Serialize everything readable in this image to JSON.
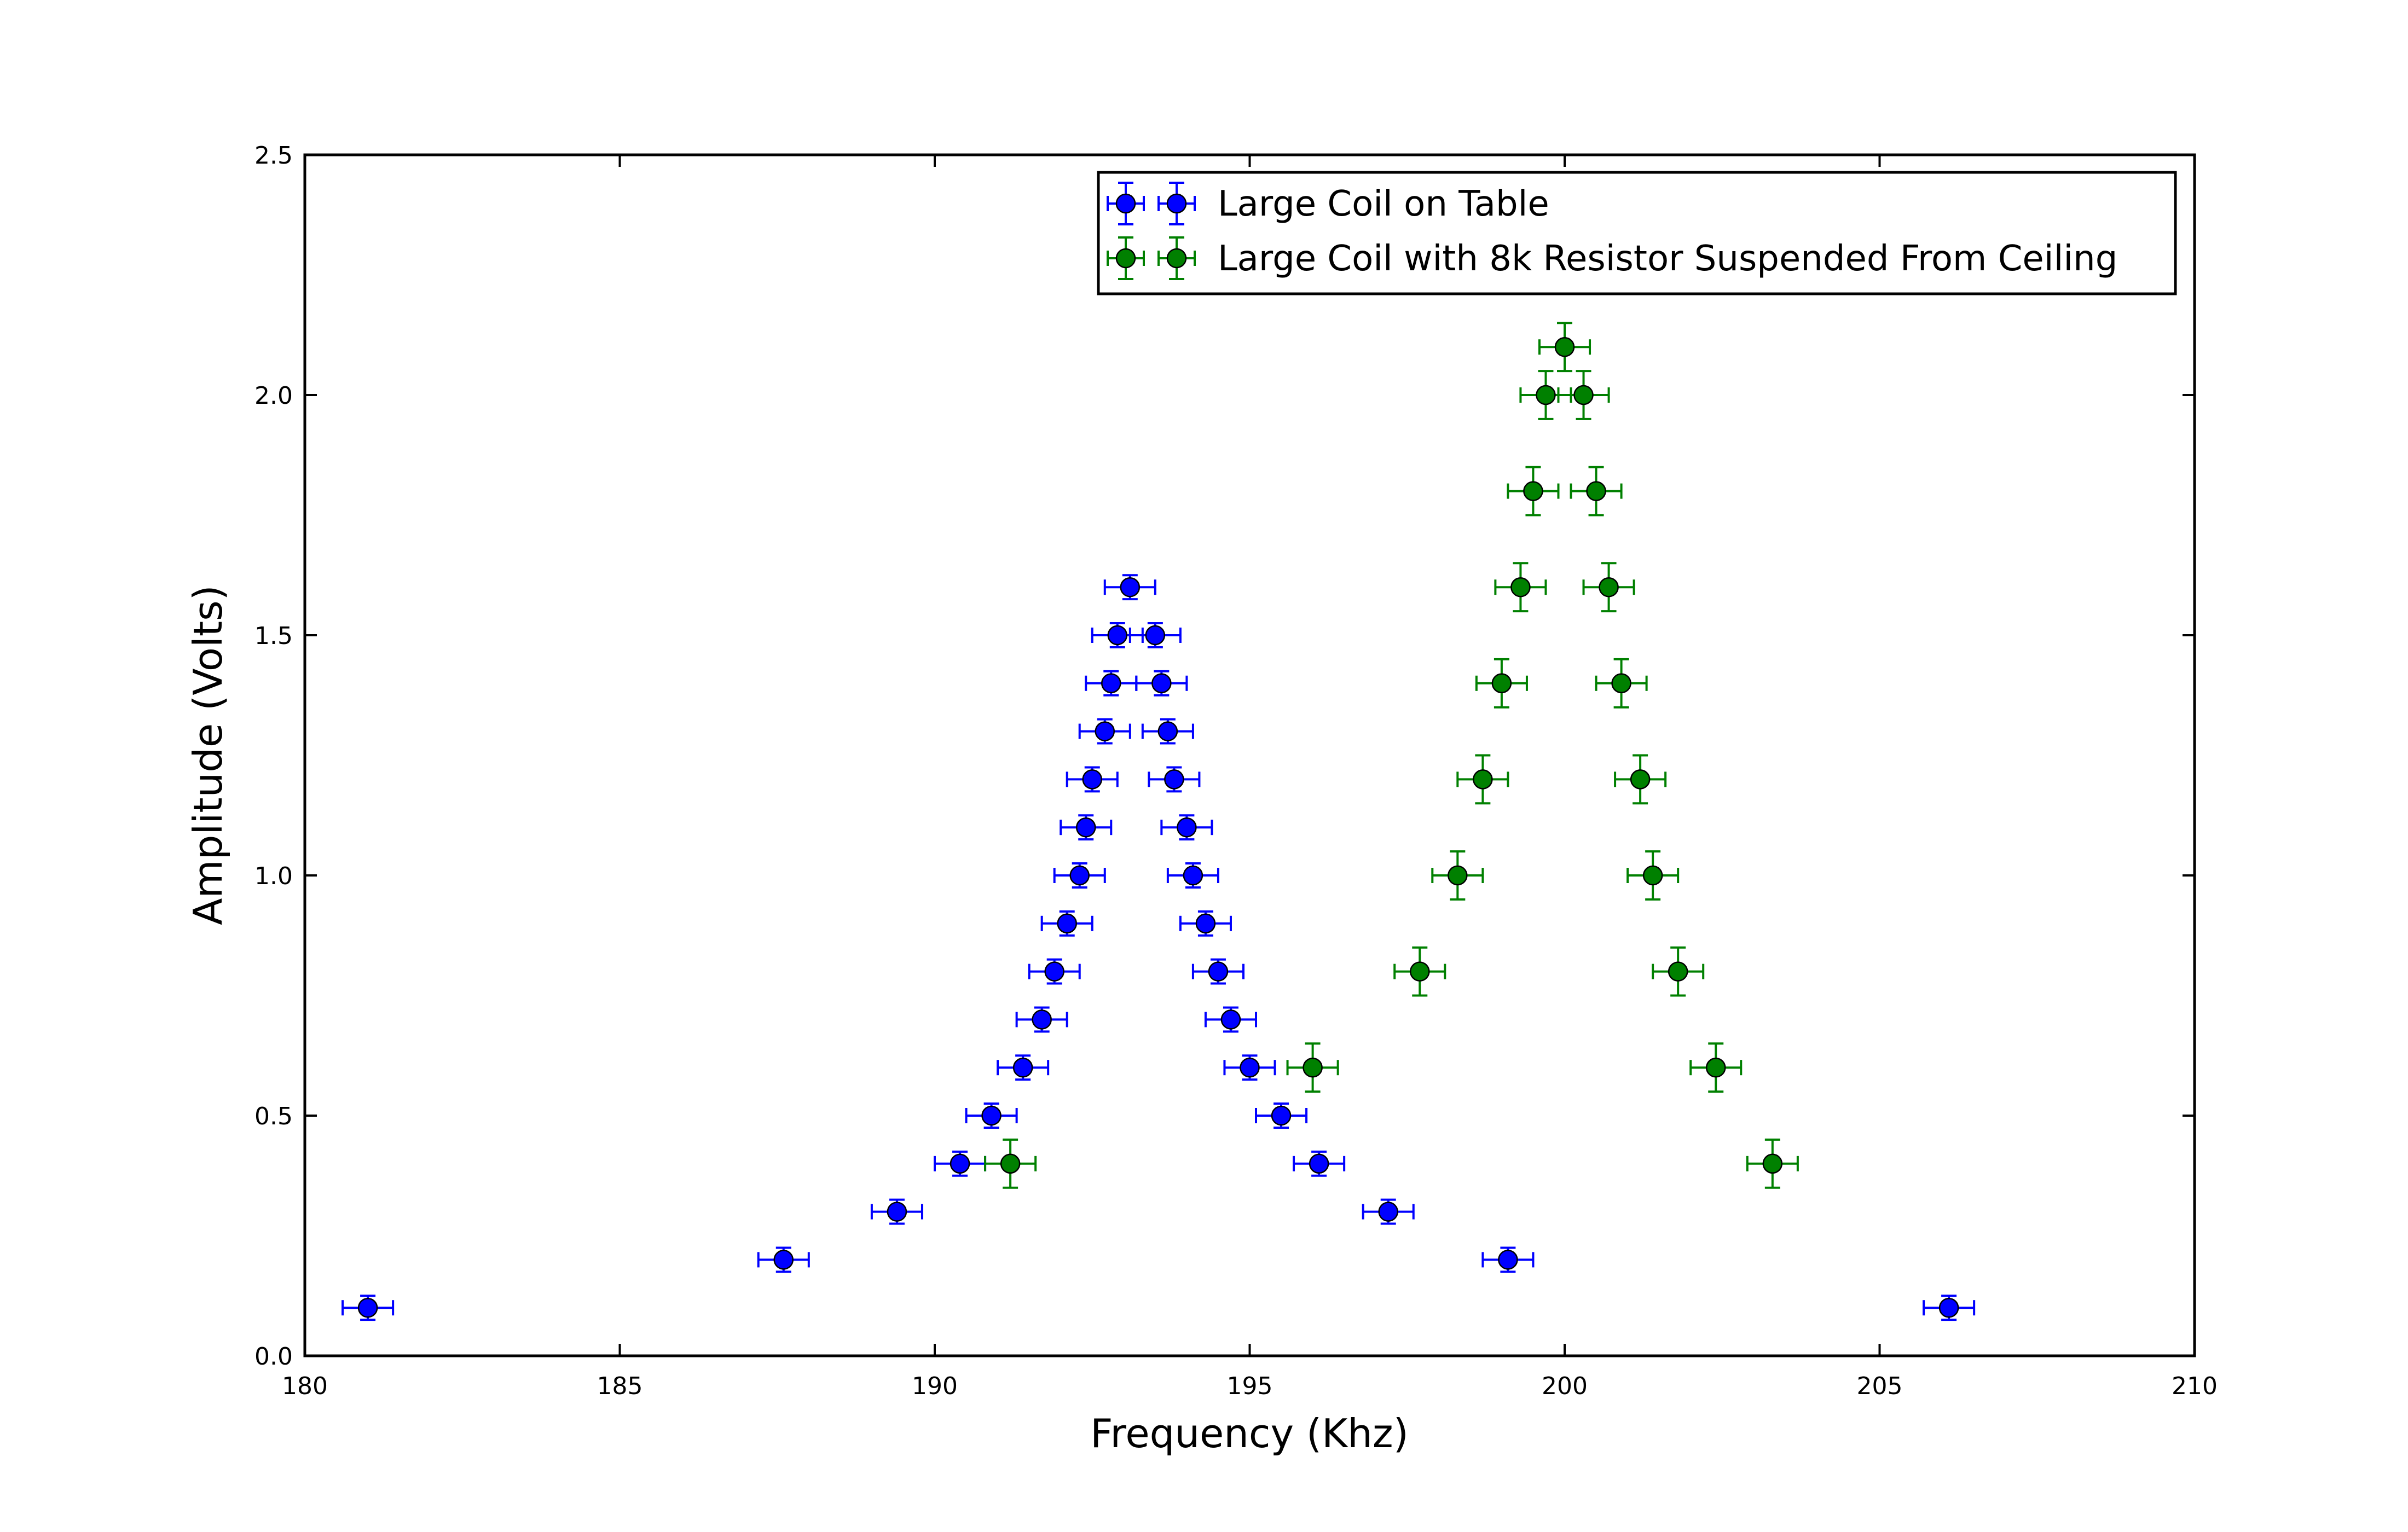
{
  "chart_data": {
    "type": "scatter",
    "title": "",
    "xlabel": "Frequency (Khz)",
    "ylabel": "Amplitude (Volts)",
    "xlim": [
      180,
      210
    ],
    "ylim": [
      0.0,
      2.5
    ],
    "x_ticks": [
      180,
      185,
      190,
      195,
      200,
      205,
      210
    ],
    "x_tick_labels": [
      "180",
      "185",
      "190",
      "195",
      "200",
      "205",
      "210"
    ],
    "y_ticks": [
      0.0,
      0.5,
      1.0,
      1.5,
      2.0,
      2.5
    ],
    "y_tick_labels": [
      "0.0",
      "0.5",
      "1.0",
      "1.5",
      "2.0",
      "2.5"
    ],
    "grid": false,
    "legend_position": "top-right",
    "series": [
      {
        "name": "Large Coil on Table",
        "color": "#0000ff",
        "x_error": 0.4,
        "y_error": 0.025,
        "points": [
          [
            181.0,
            0.1
          ],
          [
            187.6,
            0.2
          ],
          [
            189.4,
            0.3
          ],
          [
            190.4,
            0.4
          ],
          [
            190.9,
            0.5
          ],
          [
            191.4,
            0.6
          ],
          [
            191.7,
            0.7
          ],
          [
            191.9,
            0.8
          ],
          [
            192.1,
            0.9
          ],
          [
            192.3,
            1.0
          ],
          [
            192.4,
            1.1
          ],
          [
            192.5,
            1.2
          ],
          [
            192.7,
            1.3
          ],
          [
            192.8,
            1.4
          ],
          [
            192.9,
            1.5
          ],
          [
            193.1,
            1.6
          ],
          [
            193.5,
            1.5
          ],
          [
            193.6,
            1.4
          ],
          [
            193.7,
            1.3
          ],
          [
            193.8,
            1.2
          ],
          [
            194.0,
            1.1
          ],
          [
            194.1,
            1.0
          ],
          [
            194.3,
            0.9
          ],
          [
            194.5,
            0.8
          ],
          [
            194.7,
            0.7
          ],
          [
            195.0,
            0.6
          ],
          [
            195.5,
            0.5
          ],
          [
            196.1,
            0.4
          ],
          [
            197.2,
            0.3
          ],
          [
            199.1,
            0.2
          ],
          [
            206.1,
            0.1
          ]
        ]
      },
      {
        "name": "Large Coil with 8k Resistor Suspended From Ceiling",
        "color": "#008000",
        "x_error": 0.4,
        "y_error": 0.05,
        "points": [
          [
            191.2,
            0.4
          ],
          [
            196.0,
            0.6
          ],
          [
            197.7,
            0.8
          ],
          [
            198.3,
            1.0
          ],
          [
            198.7,
            1.2
          ],
          [
            199.0,
            1.4
          ],
          [
            199.3,
            1.6
          ],
          [
            199.5,
            1.8
          ],
          [
            199.7,
            2.0
          ],
          [
            200.0,
            2.1
          ],
          [
            200.3,
            2.0
          ],
          [
            200.5,
            1.8
          ],
          [
            200.7,
            1.6
          ],
          [
            200.9,
            1.4
          ],
          [
            201.2,
            1.2
          ],
          [
            201.4,
            1.0
          ],
          [
            201.8,
            0.8
          ],
          [
            202.4,
            0.6
          ],
          [
            203.3,
            0.4
          ]
        ]
      }
    ]
  }
}
